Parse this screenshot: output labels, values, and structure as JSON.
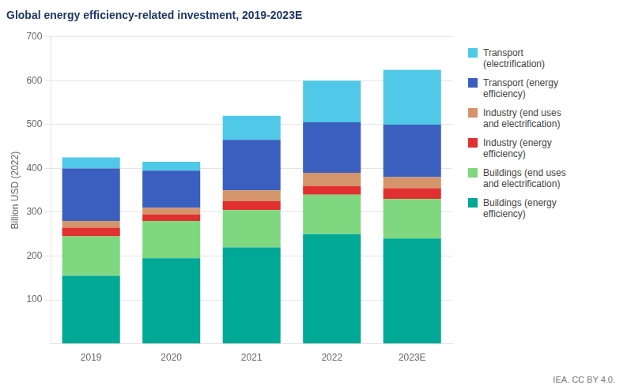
{
  "chart_data": {
    "type": "bar",
    "title": "Global energy efficiency-related investment, 2019-2023E",
    "y_label": "Billion USD (2022)",
    "categories": [
      "2019",
      "2020",
      "2021",
      "2022",
      "2023E"
    ],
    "series": [
      {
        "name": "Buildings (energy\nefficiency)",
        "color": "#00A896",
        "values": [
          155,
          195,
          220,
          250,
          240
        ]
      },
      {
        "name": "Buildings (end uses\nand electrification)",
        "color": "#7FD87F",
        "values": [
          90,
          85,
          85,
          90,
          90
        ]
      },
      {
        "name": "Industry (energy\nefficiency)",
        "color": "#E03030",
        "values": [
          20,
          15,
          20,
          20,
          25
        ]
      },
      {
        "name": "Industry (end uses\nand electrification)",
        "color": "#D4956A",
        "values": [
          15,
          15,
          25,
          30,
          25
        ]
      },
      {
        "name": "Transport (energy\nefficiency)",
        "color": "#3A5FBF",
        "values": [
          120,
          85,
          115,
          115,
          120
        ]
      },
      {
        "name": "Transport\n(electrification)",
        "color": "#50C8E8",
        "values": [
          25,
          20,
          55,
          95,
          125
        ]
      }
    ],
    "ylim": [
      0,
      700
    ],
    "yticks": [
      100,
      200,
      300,
      400,
      500,
      600,
      700
    ],
    "stacked": true,
    "grid": true,
    "legend": "right",
    "annotations": [
      "IEA. CC BY 4.0."
    ]
  }
}
